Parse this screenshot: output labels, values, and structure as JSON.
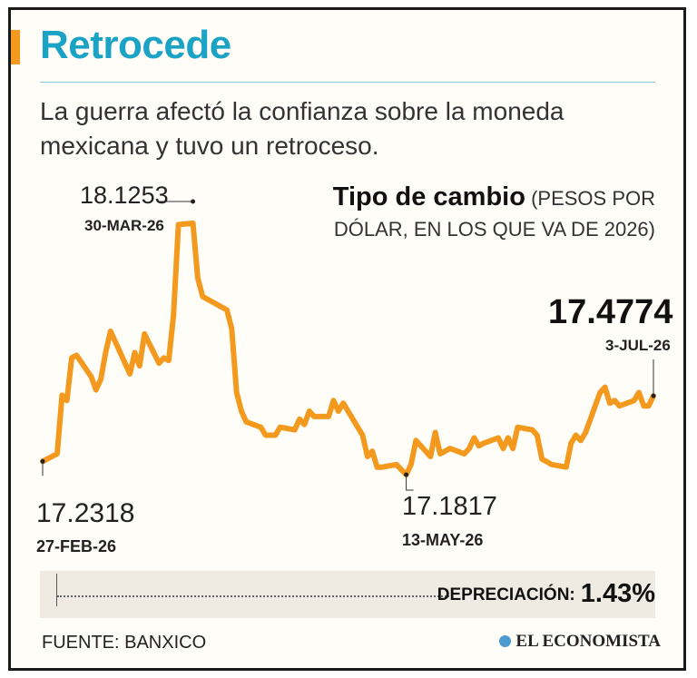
{
  "header": {
    "title": "Retrocede",
    "subtitle": "La guerra afectó la confianza sobre la moneda mexicana y tuvo un retroceso."
  },
  "chart_title": {
    "main": "Tipo de cambio",
    "sub_line1": "(PESOS POR",
    "sub_line2": "DÓLAR, EN LOS QUE VA DE 2026)"
  },
  "annotations": {
    "start_value": "17.2318",
    "start_date": "27-FEB-26",
    "max_value": "18.1253",
    "max_date": "30-MAR-26",
    "min_value": "17.1817",
    "min_date": "13-MAY-26",
    "last_value": "17.4774",
    "last_date": "3-JUL-26"
  },
  "footer": {
    "depreciation_label": "DEPRECIACIÓN:",
    "depreciation_value": "1.43%",
    "source": "FUENTE: BANXICO",
    "brand": "EL ECONOMISTA"
  },
  "colors": {
    "line": "#f39a1e",
    "title": "#1aa3c4"
  },
  "chart_data": {
    "type": "line",
    "title": "Tipo de cambio (PESOS POR DÓLAR, EN LOS QUE VA DE 2026)",
    "xlabel": "",
    "ylabel": "",
    "x": [
      "2026-02-27",
      "2026-03-02",
      "2026-03-03",
      "2026-03-04",
      "2026-03-05",
      "2026-03-06",
      "2026-03-09",
      "2026-03-10",
      "2026-03-11",
      "2026-03-12",
      "2026-03-13",
      "2026-03-17",
      "2026-03-18",
      "2026-03-19",
      "2026-03-20",
      "2026-03-23",
      "2026-03-24",
      "2026-03-25",
      "2026-03-26",
      "2026-03-27",
      "2026-03-30",
      "2026-03-31",
      "2026-04-01",
      "2026-04-06",
      "2026-04-07",
      "2026-04-08",
      "2026-04-09",
      "2026-04-10",
      "2026-04-13",
      "2026-04-14",
      "2026-04-15",
      "2026-04-16",
      "2026-04-17",
      "2026-04-20",
      "2026-04-21",
      "2026-04-22",
      "2026-04-23",
      "2026-04-24",
      "2026-04-27",
      "2026-04-28",
      "2026-04-29",
      "2026-04-30",
      "2026-05-04",
      "2026-05-05",
      "2026-05-06",
      "2026-05-07",
      "2026-05-08",
      "2026-05-11",
      "2026-05-12",
      "2026-05-13",
      "2026-05-14",
      "2026-05-15",
      "2026-05-18",
      "2026-05-19",
      "2026-05-20",
      "2026-05-21",
      "2026-05-22",
      "2026-05-25",
      "2026-05-26",
      "2026-05-27",
      "2026-05-28",
      "2026-05-29",
      "2026-06-01",
      "2026-06-02",
      "2026-06-03",
      "2026-06-04",
      "2026-06-05",
      "2026-06-08",
      "2026-06-09",
      "2026-06-10",
      "2026-06-11",
      "2026-06-12",
      "2026-06-15",
      "2026-06-16",
      "2026-06-17",
      "2026-06-18",
      "2026-06-19",
      "2026-06-22",
      "2026-06-23",
      "2026-06-24",
      "2026-06-25",
      "2026-06-26",
      "2026-06-29",
      "2026-06-30",
      "2026-07-01",
      "2026-07-02",
      "2026-07-03"
    ],
    "values": [
      17.2318,
      17.26,
      17.48,
      17.46,
      17.62,
      17.63,
      17.55,
      17.5,
      17.54,
      17.64,
      17.72,
      17.56,
      17.64,
      17.59,
      17.71,
      17.6,
      17.62,
      17.61,
      17.78,
      18.12,
      18.1253,
      17.92,
      17.85,
      17.8,
      17.73,
      17.49,
      17.42,
      17.38,
      17.36,
      17.33,
      17.33,
      17.33,
      17.36,
      17.35,
      17.39,
      17.37,
      17.42,
      17.4,
      17.4,
      17.46,
      17.42,
      17.45,
      17.33,
      17.25,
      17.27,
      17.21,
      17.21,
      17.22,
      17.2,
      17.1817,
      17.22,
      17.31,
      17.25,
      17.34,
      17.26,
      17.27,
      17.28,
      17.26,
      17.28,
      17.32,
      17.29,
      17.3,
      17.32,
      17.28,
      17.32,
      17.28,
      17.36,
      17.35,
      17.33,
      17.24,
      17.23,
      17.22,
      17.21,
      17.3,
      17.33,
      17.31,
      17.34,
      17.49,
      17.51,
      17.45,
      17.46,
      17.44,
      17.46,
      17.49,
      17.44,
      17.44,
      17.4774
    ],
    "ylim": [
      17.1,
      18.2
    ],
    "grid": false
  }
}
